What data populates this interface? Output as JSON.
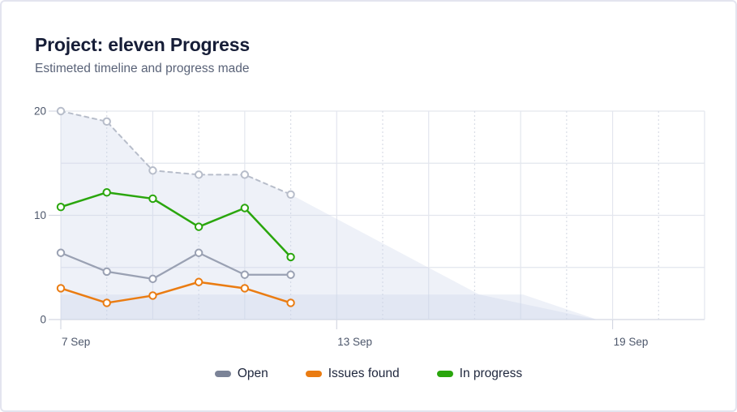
{
  "header": {
    "title": "Project: eleven Progress",
    "subtitle": "Estimeted timeline and progress made"
  },
  "chart_data": {
    "type": "line",
    "title": "Project: eleven Progress",
    "subtitle": "Estimeted timeline and progress made",
    "grid": "on",
    "legend_position": "bottom-center",
    "point_days": [
      7,
      8,
      9,
      10,
      11,
      12
    ],
    "point_labels": [
      "7 Sep",
      "8 Sep",
      "9 Sep",
      "10 Sep",
      "11 Sep",
      "12 Sep"
    ],
    "x_axis": {
      "start_day": 7,
      "end_day": 21,
      "month": "Sep",
      "ticks": [
        {
          "day": 7,
          "label": "7 Sep"
        },
        {
          "day": 13,
          "label": "13 Sep"
        },
        {
          "day": 19,
          "label": "19 Sep"
        }
      ],
      "solid_grid_days": [
        7,
        9,
        11,
        13,
        15,
        17,
        19,
        21
      ],
      "dotted_grid_days": [
        8,
        10,
        12,
        14,
        16,
        18,
        20
      ]
    },
    "y_axis": {
      "min": 0,
      "max": 20,
      "ticks": [
        {
          "value": 0,
          "label": "0"
        },
        {
          "value": 10,
          "label": "10"
        },
        {
          "value": 20,
          "label": "20"
        }
      ],
      "grid_values": [
        0,
        5,
        10,
        15,
        20
      ]
    },
    "series": [
      {
        "name": "Estimated",
        "dashed": true,
        "legend": false,
        "color": "#b7bdca",
        "width": 2,
        "values": [
          20,
          19,
          14.3,
          13.9,
          13.9,
          12
        ]
      },
      {
        "name": "Open",
        "dashed": false,
        "legend": true,
        "color": "#9aa1b3",
        "legend_color": "#7b8397",
        "width": 2.2,
        "values": [
          6.4,
          4.6,
          3.9,
          6.4,
          4.3,
          4.3
        ]
      },
      {
        "name": "Issues found",
        "dashed": false,
        "legend": true,
        "color": "#ea7c12",
        "width": 2.5,
        "values": [
          3,
          1.6,
          2.3,
          3.6,
          3,
          1.6
        ]
      },
      {
        "name": "In progress",
        "dashed": false,
        "legend": true,
        "color": "#2aa60d",
        "width": 2.5,
        "values": [
          10.8,
          12.2,
          11.6,
          8.9,
          10.7,
          6
        ]
      }
    ],
    "area_color": "rgba(203,212,232,0.32)",
    "area_layers": [
      {
        "name": "estimated-projection",
        "points": [
          [
            7,
            20
          ],
          [
            8,
            19
          ],
          [
            9,
            14.3
          ],
          [
            10,
            13.9
          ],
          [
            11,
            13.9
          ],
          [
            12,
            12
          ],
          [
            16.1,
            2.4
          ],
          [
            18.66,
            0
          ],
          [
            7,
            0
          ]
        ]
      },
      {
        "name": "remaining-band",
        "points": [
          [
            7,
            2.4
          ],
          [
            17.05,
            2.4
          ],
          [
            18.66,
            0
          ],
          [
            7,
            0
          ]
        ]
      }
    ],
    "colors": {
      "grid": "#e3e6ee",
      "grid_dotted": "#d9dde6",
      "axis_zero_line": "#d4d8e2",
      "axis_label": "#4d576b",
      "title": "#161d37",
      "subtitle": "#5a6378",
      "card_border": "#e3e4ef"
    }
  }
}
